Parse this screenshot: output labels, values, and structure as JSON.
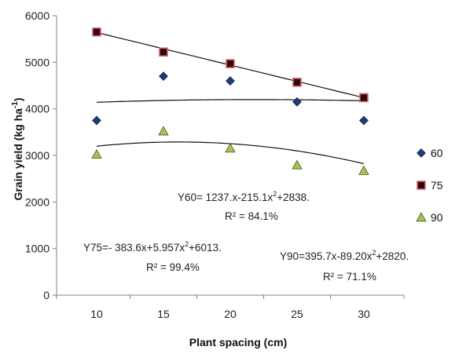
{
  "chart_data": {
    "type": "scatter",
    "xlabel": "Plant spacing (cm)",
    "ylabel_main": "Grain yield (kg ha",
    "ylabel_sup": "-1",
    "ylabel_close": ")",
    "xlim": [
      7,
      33
    ],
    "ylim": [
      0,
      6000
    ],
    "xticks": [
      10,
      15,
      20,
      25,
      30
    ],
    "yticks": [
      0,
      1000,
      2000,
      3000,
      4000,
      5000,
      6000
    ],
    "grid": false,
    "legend": "right",
    "series": [
      {
        "name": "60",
        "marker": "diamond",
        "color": "#1f3b73",
        "x": [
          10,
          15,
          20,
          25,
          30
        ],
        "y": [
          3750,
          4700,
          4600,
          4150,
          3750
        ],
        "trend": [
          -0.42,
          18.3,
          4000
        ]
      },
      {
        "name": "75",
        "marker": "square",
        "color": "#8b1a1a",
        "x": [
          10,
          15,
          20,
          25,
          30
        ],
        "y": [
          5650,
          5220,
          4970,
          4570,
          4240
        ],
        "trend": [
          0,
          -70,
          6340
        ]
      },
      {
        "name": "90",
        "marker": "triangle",
        "color": "#7a9a2e",
        "x": [
          10,
          15,
          20,
          25,
          30
        ],
        "y": [
          3020,
          3520,
          3150,
          2790,
          2670
        ],
        "trend": [
          -2.42,
          78,
          2660
        ]
      }
    ],
    "annotations": [
      {
        "line1": "Y60= 1237.x-215.1x",
        "sup": "2",
        "line1b": "+2838.",
        "line2": "R² = 84.1%"
      },
      {
        "line1": "Y75=- 383.6x+5.957x",
        "sup": "2",
        "line1b": "+6013.",
        "line2": "R² = 99.4%"
      },
      {
        "line1": "Y90=395.7x-89.20x",
        "sup": "2",
        "line1b": "+2820.",
        "line2": "R² = 71.1%"
      }
    ]
  }
}
